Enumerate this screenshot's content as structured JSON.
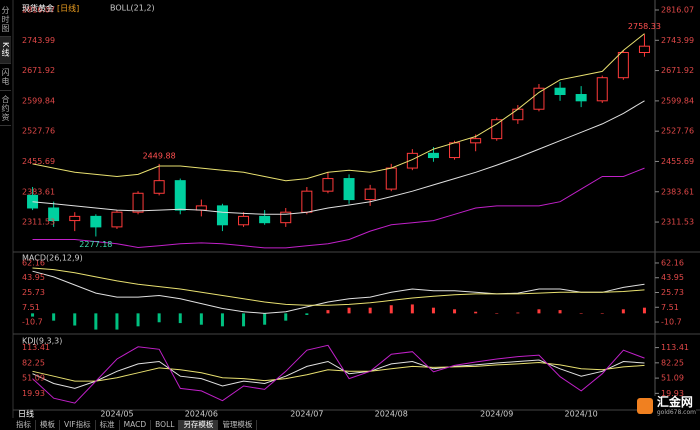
{
  "chart_data": [
    {
      "type": "candlestick",
      "title": "现货黄金",
      "period": "[日线]",
      "indicator": "BOLL(21,2)",
      "categories": [
        null,
        null,
        null,
        null,
        "2024/05",
        null,
        null,
        null,
        "2024/06",
        null,
        null,
        null,
        null,
        "2024/07",
        null,
        null,
        null,
        "2024/08",
        null,
        null,
        null,
        null,
        "2024/09",
        null,
        null,
        null,
        "2024/10",
        null,
        null,
        null
      ],
      "open": [
        2375,
        2345,
        2315,
        2325,
        2300,
        2335,
        2380,
        2410,
        2340,
        2350,
        2305,
        2325,
        2310,
        2335,
        2385,
        2415,
        2365,
        2390,
        2440,
        2475,
        2465,
        2500,
        2510,
        2555,
        2580,
        2630,
        2615,
        2600,
        2655,
        2715
      ],
      "high": [
        2395,
        2360,
        2335,
        2330,
        2340,
        2385,
        2449.88,
        2415,
        2365,
        2355,
        2335,
        2340,
        2345,
        2395,
        2430,
        2425,
        2400,
        2450,
        2485,
        2490,
        2505,
        2520,
        2560,
        2590,
        2640,
        2645,
        2635,
        2660,
        2720,
        2758.33
      ],
      "low": [
        2340,
        2300,
        2290,
        2277.18,
        2295,
        2330,
        2375,
        2330,
        2325,
        2290,
        2300,
        2305,
        2300,
        2330,
        2380,
        2355,
        2350,
        2385,
        2435,
        2455,
        2460,
        2480,
        2505,
        2545,
        2575,
        2600,
        2585,
        2595,
        2650,
        2705
      ],
      "close": [
        2345,
        2315,
        2325,
        2300,
        2335,
        2380,
        2410,
        2340,
        2350,
        2305,
        2325,
        2310,
        2335,
        2385,
        2415,
        2365,
        2390,
        2440,
        2475,
        2465,
        2500,
        2510,
        2555,
        2580,
        2630,
        2615,
        2600,
        2655,
        2715,
        2730
      ],
      "up_color": "#ff3b3b",
      "down_color": "#00d0a0",
      "annotations": [
        "chart_data.0.high.6",
        "chart_data.0.low.3",
        "chart_data.0.high.29"
      ],
      "series": [
        {
          "color": "#e0e0e0",
          "values": [
            2360,
            2355,
            2350,
            2345,
            2340,
            2338,
            2340,
            2342,
            2340,
            2335,
            2332,
            2330,
            2330,
            2335,
            2345,
            2352,
            2360,
            2372,
            2385,
            2400,
            2415,
            2430,
            2447,
            2465,
            2485,
            2505,
            2525,
            2545,
            2570,
            2600
          ]
        },
        {
          "color": "#e8e070",
          "values": [
            2450,
            2440,
            2430,
            2425,
            2420,
            2425,
            2445,
            2445,
            2440,
            2435,
            2430,
            2420,
            2410,
            2415,
            2430,
            2435,
            2430,
            2440,
            2460,
            2485,
            2500,
            2515,
            2545,
            2580,
            2620,
            2650,
            2660,
            2670,
            2720,
            2760
          ]
        },
        {
          "color": "#c020c8",
          "values": [
            2270,
            2270,
            2270,
            2265,
            2260,
            2251,
            2255,
            2260,
            2262,
            2260,
            2255,
            2250,
            2250,
            2255,
            2260,
            2270,
            2290,
            2305,
            2310,
            2315,
            2330,
            2345,
            2350,
            2350,
            2350,
            2360,
            2390,
            2420,
            2420,
            2440
          ]
        }
      ],
      "ylim": [
        2245,
        2828
      ],
      "yticks": [
        2311.53,
        2383.61,
        2455.69,
        2527.76,
        2599.84,
        2671.92,
        2743.99,
        2816.07
      ]
    },
    {
      "type": "line",
      "title": "MACD(26,12,9)",
      "series": [
        {
          "type": "bar",
          "up_color": "#ff3b3b",
          "down_color": "#00c080",
          "values": [
            -4,
            -9,
            -15,
            -20,
            -20,
            -16,
            -11,
            -12,
            -14,
            -16,
            -16,
            -14,
            -9,
            -2,
            4,
            7,
            7,
            10,
            11,
            7,
            5,
            2,
            0,
            1,
            5,
            4,
            0,
            0,
            5,
            7
          ]
        },
        {
          "color": "#e0e0e0",
          "values": [
            52,
            45,
            35,
            25,
            20,
            20,
            22,
            18,
            12,
            6,
            2,
            0,
            2,
            8,
            14,
            18,
            20,
            26,
            30,
            28,
            28,
            26,
            24,
            25,
            30,
            30,
            26,
            26,
            32,
            36
          ]
        },
        {
          "color": "#e8e070",
          "values": [
            56,
            54,
            50,
            45,
            40,
            36,
            33,
            30,
            26,
            22,
            18,
            14,
            11,
            10,
            10,
            11,
            13,
            16,
            19,
            21,
            23,
            24,
            24,
            24,
            25,
            26,
            26,
            26,
            27,
            29
          ]
        }
      ],
      "ylim": [
        -23,
        72
      ],
      "yticks": [
        -10.7,
        7.51,
        25.73,
        43.95,
        62.16
      ]
    },
    {
      "type": "line",
      "title": "KDJ(9,3,3)",
      "series": [
        {
          "color": "#e0e0e0",
          "values": [
            60,
            40,
            30,
            45,
            65,
            80,
            85,
            55,
            50,
            35,
            45,
            40,
            55,
            75,
            85,
            60,
            65,
            80,
            85,
            70,
            75,
            78,
            82,
            85,
            88,
            70,
            55,
            65,
            85,
            82
          ]
        },
        {
          "color": "#e8e070",
          "values": [
            65,
            55,
            45,
            45,
            52,
            62,
            72,
            68,
            62,
            52,
            50,
            46,
            50,
            58,
            68,
            65,
            65,
            70,
            75,
            73,
            74,
            75,
            78,
            80,
            83,
            78,
            70,
            68,
            74,
            77
          ]
        },
        {
          "color": "#c020c8",
          "values": [
            50,
            10,
            0,
            45,
            90,
            115,
            110,
            30,
            25,
            5,
            35,
            28,
            65,
            108,
            118,
            50,
            65,
            100,
            105,
            64,
            77,
            84,
            90,
            95,
            98,
            54,
            25,
            60,
            108,
            92
          ]
        }
      ],
      "ylim": [
        -10,
        133
      ],
      "yticks": [
        19.93,
        51.09,
        82.25,
        113.41
      ]
    }
  ],
  "ui": {
    "sidebar": [
      "分时图",
      "K线图",
      "闪电图",
      "合约资料"
    ],
    "period_button": "日线",
    "tabs": [
      "指标",
      "模板",
      "VIF指标",
      "标准",
      "MACD",
      "BOLL",
      "另存模板",
      "管理模板"
    ],
    "active_tab": 6,
    "logo": {
      "name": "汇金网",
      "url": "gold678.com"
    }
  }
}
